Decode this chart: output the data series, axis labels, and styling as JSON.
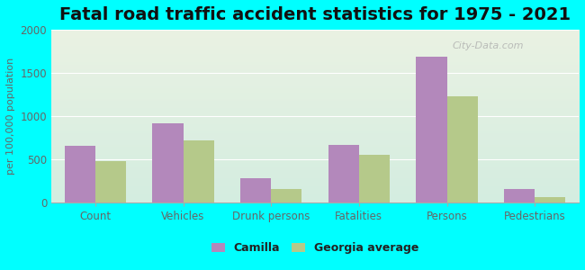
{
  "title": "Fatal road traffic accident statistics for 1975 - 2021",
  "ylabel": "per 100,000 population",
  "categories": [
    "Count",
    "Vehicles",
    "Drunk persons",
    "Fatalities",
    "Persons",
    "Pedestrians"
  ],
  "camilla_values": [
    650,
    920,
    280,
    670,
    1690,
    150
  ],
  "georgia_values": [
    480,
    720,
    150,
    545,
    1230,
    55
  ],
  "camilla_color": "#b388bb",
  "georgia_color": "#b5c98a",
  "background_color": "#00ffff",
  "grad_top": "#eaf2e3",
  "grad_bottom": "#d4ede0",
  "ylim": [
    0,
    2000
  ],
  "yticks": [
    0,
    500,
    1000,
    1500,
    2000
  ],
  "bar_width": 0.35,
  "legend_labels": [
    "Camilla",
    "Georgia average"
  ],
  "watermark": "City-Data.com",
  "title_fontsize": 14,
  "axis_fontsize": 8.5,
  "legend_fontsize": 9,
  "ylabel_fontsize": 8,
  "tick_color": "#666666",
  "grid_color": "#ffffff"
}
